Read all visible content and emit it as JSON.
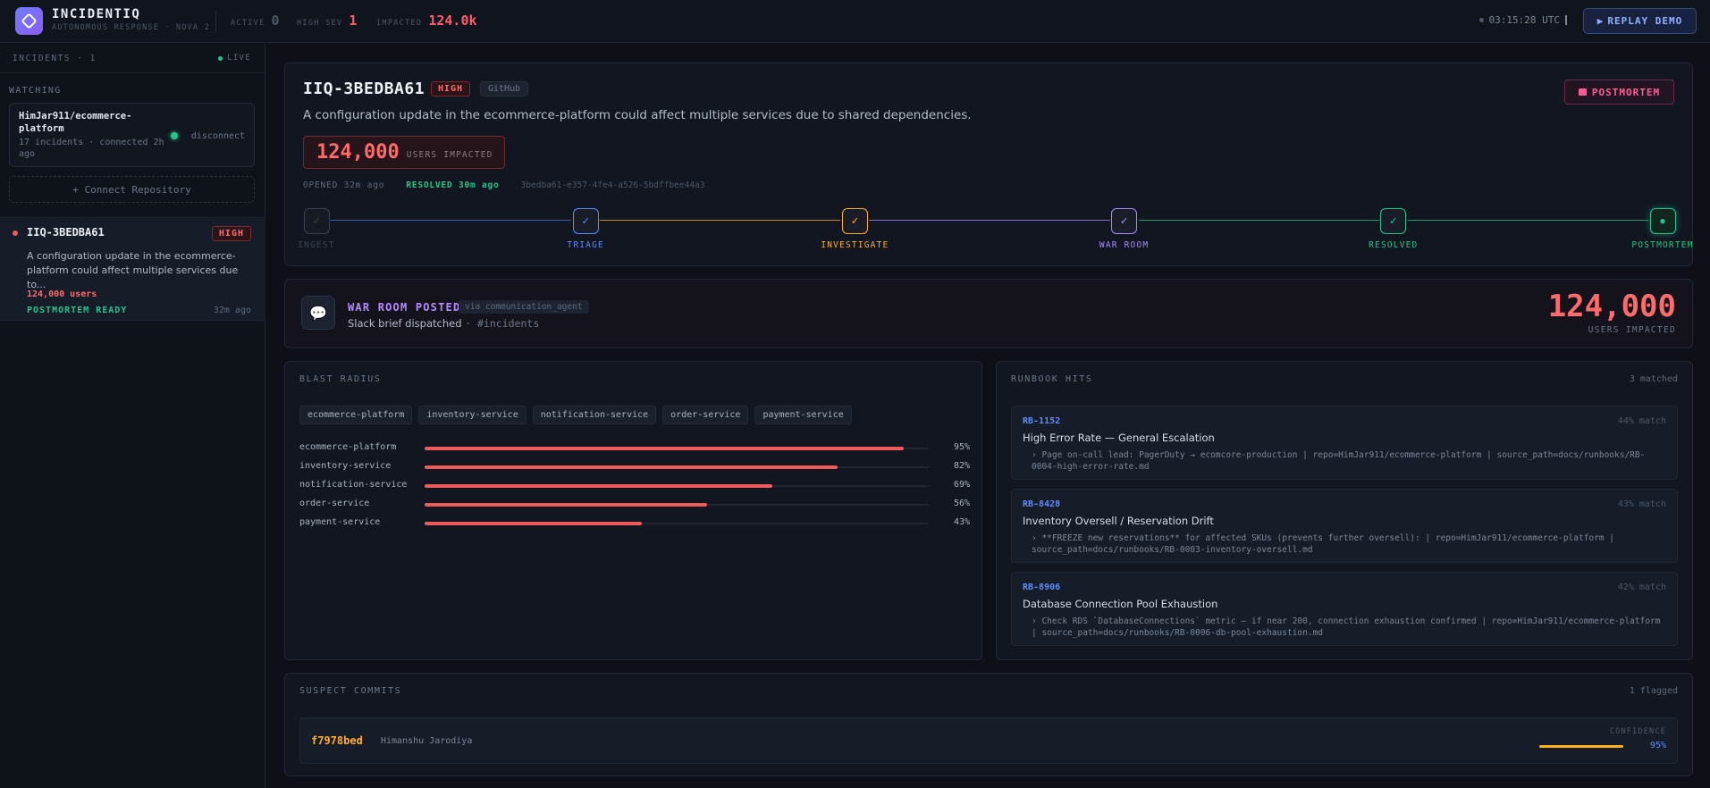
{
  "topbar": {
    "brand": "INCIDENTIQ",
    "subtitle": "AUTONOMOUS RESPONSE · NOVA 2",
    "stats": [
      {
        "label": "ACTIVE",
        "value": "0",
        "color": "#4d5768"
      },
      {
        "label": "HIGH SEV",
        "value": "1",
        "color": "#ff5c6c"
      },
      {
        "label": "IMPACTED",
        "value": "124.0k",
        "color": "#ff5c6c"
      }
    ],
    "clock": "03:15:28 UTC",
    "replay_label": "REPLAY DEMO"
  },
  "sidebar": {
    "title": "INCIDENTS · 1",
    "live": "LIVE",
    "watching": "WATCHING",
    "repo": {
      "name": "HimJar911/ecommerce-platform",
      "meta": "17 incidents · connected 2h ago",
      "disconnect": "disconnect"
    },
    "connect": "+ Connect Repository",
    "incident": {
      "id": "IIQ-3BEDBA61",
      "severity": "HIGH",
      "description": "A configuration update in the ecommerce-platform could affect multiple services due to...",
      "users": "124,000 users",
      "status": "POSTMORTEM READY",
      "ago": "32m ago"
    }
  },
  "incident": {
    "id": "IIQ-3BEDBA61",
    "severity": "HIGH",
    "source": "GitHub",
    "postmortem_label": "POSTMORTEM",
    "headline": "A configuration update in the ecommerce-platform could affect multiple services due to shared dependencies.",
    "impact_value": "124,000",
    "impact_label": "USERS IMPACTED",
    "opened": "OPENED 32m ago",
    "resolved": "RESOLVED 30m ago",
    "uuid": "3bedba61-e357-4fe4-a526-5bdffbee44a3",
    "steps": [
      {
        "name": "INGEST",
        "glyph": "✓",
        "color": "#3a4252"
      },
      {
        "name": "TRIAGE",
        "glyph": "✓",
        "color": "#5b8dff"
      },
      {
        "name": "INVESTIGATE",
        "glyph": "✓",
        "color": "#ffb020"
      },
      {
        "name": "WAR ROOM",
        "glyph": "✓",
        "color": "#a98bff"
      },
      {
        "name": "RESOLVED",
        "glyph": "✓",
        "color": "#22c58b"
      },
      {
        "name": "POSTMORTEM",
        "glyph": "●",
        "color": "#22c58b"
      }
    ]
  },
  "war_room": {
    "icon": "💬",
    "title": "WAR ROOM POSTED",
    "via": "via communication_agent",
    "subtitle": "Slack brief dispatched",
    "channel": "· #incidents",
    "impact_value": "124,000",
    "impact_label": "USERS IMPACTED"
  },
  "blast_radius": {
    "title": "BLAST RADIUS",
    "chips": [
      "ecommerce-platform",
      "inventory-service",
      "notification-service",
      "order-service",
      "payment-service"
    ],
    "bars": [
      {
        "name": "ecommerce-platform",
        "percent": 95,
        "label": "95%"
      },
      {
        "name": "inventory-service",
        "percent": 82,
        "label": "82%"
      },
      {
        "name": "notification-service",
        "percent": 69,
        "label": "69%"
      },
      {
        "name": "order-service",
        "percent": 56,
        "label": "56%"
      },
      {
        "name": "payment-service",
        "percent": 43,
        "label": "43%"
      }
    ]
  },
  "runbooks": {
    "title": "RUNBOOK HITS",
    "count": "3 matched",
    "items": [
      {
        "id": "RB-1152",
        "match": "44% match",
        "title": "High Error Rate — General Escalation",
        "text": "› Page on-call lead: PagerDuty → ecomcore-production | repo=HimJar911/ecommerce-platform | source_path=docs/runbooks/RB-0004-high-error-rate.md"
      },
      {
        "id": "RB-8428",
        "match": "43% match",
        "title": "Inventory Oversell / Reservation Drift",
        "text": "› **FREEZE new reservations** for affected SKUs (prevents further oversell): | repo=HimJar911/ecommerce-platform | source_path=docs/runbooks/RB-0003-inventory-oversell.md"
      },
      {
        "id": "RB-8906",
        "match": "42% match",
        "title": "Database Connection Pool Exhaustion",
        "text": "› Check RDS `DatabaseConnections` metric — if near 200, connection exhaustion confirmed | repo=HimJar911/ecommerce-platform | source_path=docs/runbooks/RB-0006-db-pool-exhaustion.md"
      }
    ]
  },
  "suspect_commits": {
    "title": "SUSPECT COMMITS",
    "count": "1 flagged",
    "commit": {
      "sha": "f7978bed",
      "author": "Himanshu Jarodiya",
      "confidence_label": "CONFIDENCE",
      "confidence": 95,
      "confidence_text": "95%"
    }
  }
}
